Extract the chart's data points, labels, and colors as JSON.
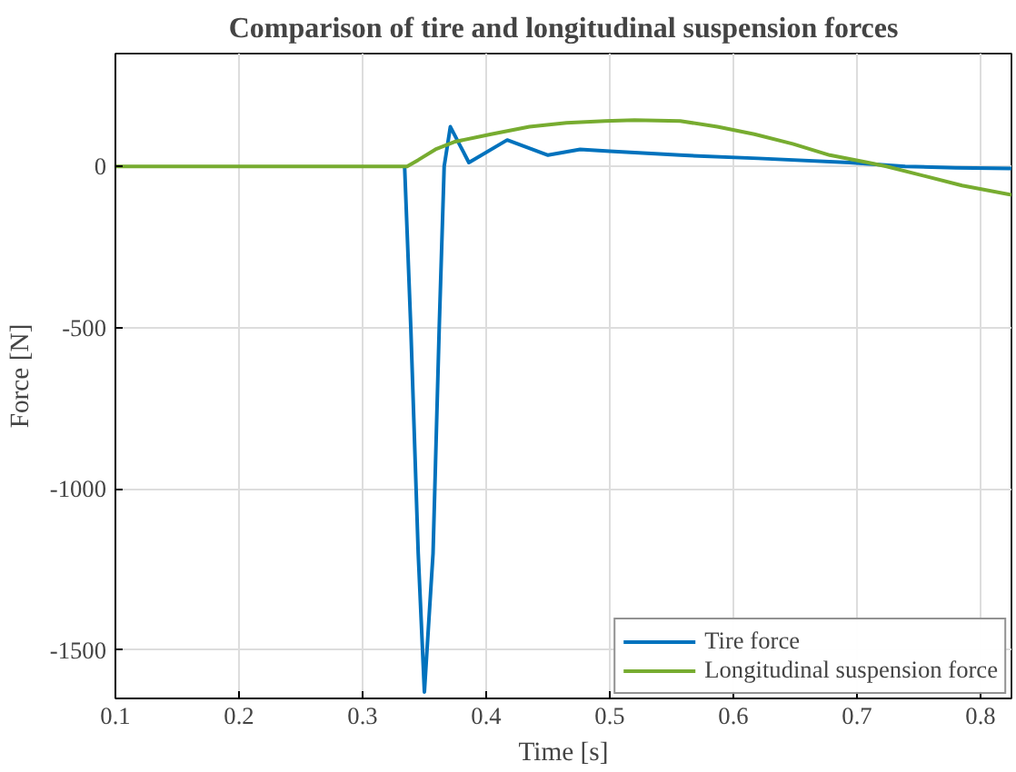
{
  "chart_data": {
    "type": "line",
    "title": "Comparison of tire and longitudinal suspension forces",
    "xlabel": "Time [s]",
    "ylabel": "Force [N]",
    "xlim": [
      0.1,
      0.825
    ],
    "ylim": [
      -1650,
      350
    ],
    "xticks": [
      0.1,
      0.2,
      0.3,
      0.4,
      0.5,
      0.6,
      0.7,
      0.8
    ],
    "yticks": [
      {
        "value": -1500,
        "label": "-1500"
      },
      {
        "value": -1000,
        "label": "-1000"
      },
      {
        "value": -500,
        "label": "-500"
      },
      0
    ],
    "grid": true,
    "legend": "bottom right",
    "line_style": "solid",
    "marker": "none",
    "series": [
      {
        "name": "Tire force",
        "color": "#0072bd",
        "x": [
          0.334,
          0.339,
          0.345,
          0.35,
          0.357,
          0.362,
          0.366,
          0.371,
          0.386,
          0.417,
          0.45,
          0.476,
          0.5,
          0.557,
          0.62,
          0.694,
          0.739,
          0.78,
          0.825
        ],
        "values": [
          0,
          -500,
          -1200,
          -1630,
          -1200,
          -500,
          0,
          123,
          12,
          82,
          35,
          53,
          47,
          35,
          25,
          12,
          0,
          -4,
          -6
        ]
      },
      {
        "name": "Longitudinal suspension force",
        "color": "#77ac30",
        "x": [
          0.1,
          0.2,
          0.3,
          0.336,
          0.345,
          0.359,
          0.374,
          0.404,
          0.435,
          0.465,
          0.496,
          0.52,
          0.557,
          0.587,
          0.617,
          0.648,
          0.678,
          0.709,
          0.724,
          0.755,
          0.785,
          0.825
        ],
        "values": [
          0,
          0,
          0,
          0,
          20,
          53,
          76,
          100,
          123,
          135,
          141,
          144,
          141,
          123,
          100,
          70,
          35,
          12,
          0,
          -30,
          -59,
          -88
        ]
      }
    ]
  }
}
